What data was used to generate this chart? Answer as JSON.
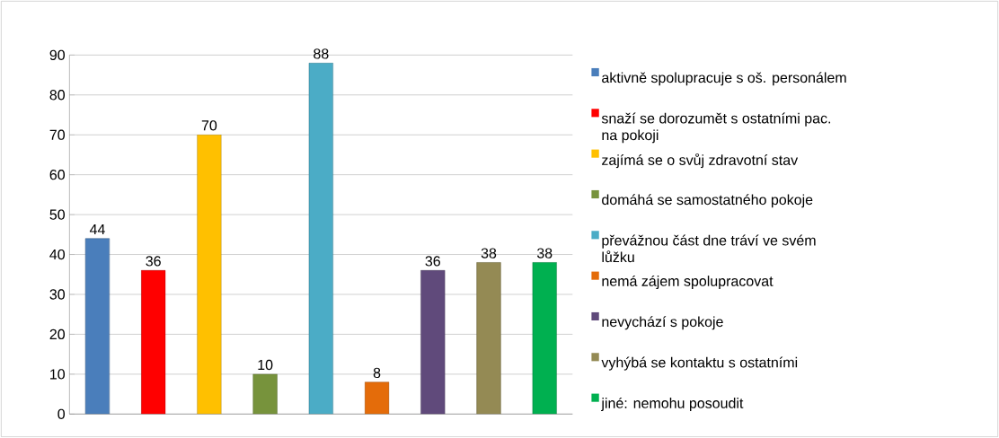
{
  "chart_data": {
    "type": "bar",
    "categories": [
      null,
      null,
      null,
      null,
      null,
      null,
      null,
      null,
      null
    ],
    "series": [
      {
        "name": "aktivně spolupracuje s oš. personálem",
        "color": "#4a7ebb",
        "values": [
          44,
          null,
          null,
          null,
          null,
          null,
          null,
          null,
          null
        ]
      },
      {
        "name": "snaží se dorozumět s ostatními pac. na pokoji",
        "color": "#ff0000",
        "values": [
          null,
          36,
          null,
          null,
          null,
          null,
          null,
          null,
          null
        ]
      },
      {
        "name": "zajímá se o svůj zdravotní stav",
        "color": "#ffc000",
        "values": [
          null,
          null,
          70,
          null,
          null,
          null,
          null,
          null,
          null
        ]
      },
      {
        "name": "domáhá se samostatného pokoje",
        "color": "#77933c",
        "values": [
          null,
          null,
          null,
          10,
          null,
          null,
          null,
          null,
          null
        ]
      },
      {
        "name": "převážnou část dne tráví ve svém lůžku",
        "color": "#4bacc6",
        "values": [
          null,
          null,
          null,
          null,
          88,
          null,
          null,
          null,
          null
        ]
      },
      {
        "name": "nemá zájem spolupracovat",
        "color": "#e46c0a",
        "values": [
          null,
          null,
          null,
          null,
          null,
          8,
          null,
          null,
          null
        ]
      },
      {
        "name": "nevychází s pokoje",
        "color": "#604a7b",
        "values": [
          null,
          null,
          null,
          null,
          null,
          null,
          36,
          null,
          null
        ]
      },
      {
        "name": "vyhýbá se kontaktu s ostatními",
        "color": "#948a54",
        "values": [
          null,
          null,
          null,
          null,
          null,
          null,
          null,
          38,
          null
        ]
      },
      {
        "name": "jiné: nemohu posoudit",
        "color": "#00b050",
        "values": [
          null,
          null,
          null,
          null,
          null,
          null,
          null,
          null,
          38
        ]
      }
    ],
    "ylim": [
      0,
      90
    ],
    "yticks": [
      0,
      10,
      20,
      30,
      40,
      50,
      60,
      70,
      80,
      90
    ],
    "grid": "y",
    "legend": "right",
    "data_labels": true
  }
}
